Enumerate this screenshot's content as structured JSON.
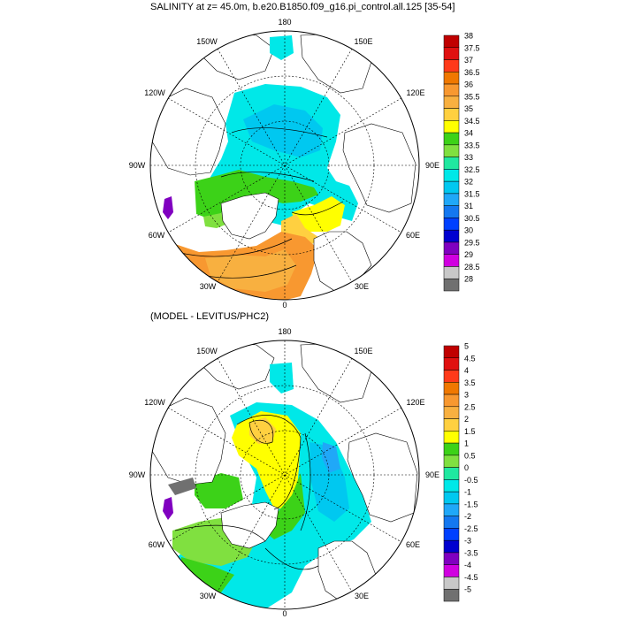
{
  "figure": {
    "map1": {
      "title": "SALINITY at z=  45.0m, b.e20.B1850.f09_g16.pi_control.all.125 [35-54]",
      "lon_labels": {
        "top": "180",
        "upper_left": "150W",
        "upper_right": "150E",
        "mid_left_upper": "120W",
        "mid_right_upper": "120E",
        "left": "90W",
        "right": "90E",
        "mid_left_lower": "60W",
        "mid_right_lower": "60E",
        "lower_left": "30W",
        "lower_right": "30E",
        "bottom": "0"
      },
      "colorbar": {
        "labels": [
          "38",
          "37.5",
          "37",
          "36.5",
          "36",
          "35.5",
          "35",
          "34.5",
          "34",
          "33.5",
          "33",
          "32.5",
          "32",
          "31.5",
          "31",
          "30.5",
          "30",
          "29.5",
          "29",
          "28.5",
          "28"
        ],
        "colors": [
          "#c00000",
          "#e01010",
          "#ff3a1a",
          "#f07800",
          "#f89830",
          "#f8b040",
          "#ffd040",
          "#ffff00",
          "#3cd218",
          "#80e040",
          "#20e8a0",
          "#00e8e8",
          "#00c8f0",
          "#20a8f8",
          "#1478f0",
          "#0040ff",
          "#0000d0",
          "#8000c0",
          "#d000e0",
          "#c8c8c8",
          "#707070"
        ]
      },
      "regions": {
        "ocean_fill_primary": "#00e8e8",
        "atlantic_fill": "#f89830",
        "land_fill": "#ffffff"
      }
    },
    "map2": {
      "title": "(MODEL - LEVITUS/PHC2)",
      "lon_labels": {
        "top": "180",
        "upper_left": "150W",
        "upper_right": "150E",
        "mid_left_upper": "120W",
        "mid_right_upper": "120E",
        "left": "90W",
        "right": "90E",
        "mid_left_lower": "60W",
        "mid_right_lower": "60E",
        "lower_left": "30W",
        "lower_right": "30E",
        "bottom": "0"
      },
      "colorbar": {
        "labels": [
          "5",
          "4.5",
          "4",
          "3.5",
          "3",
          "2.5",
          "2",
          "1.5",
          "1",
          "0.5",
          "0",
          "-0.5",
          "-1",
          "-1.5",
          "-2",
          "-2.5",
          "-3",
          "-3.5",
          "-4",
          "-4.5",
          "-5"
        ],
        "colors": [
          "#c00000",
          "#e01010",
          "#ff3a1a",
          "#f07800",
          "#f89830",
          "#f8b040",
          "#ffd040",
          "#ffff00",
          "#3cd218",
          "#80e040",
          "#20e8a0",
          "#00e8e8",
          "#00c8f0",
          "#20a8f8",
          "#1478f0",
          "#0040ff",
          "#0000d0",
          "#8000c0",
          "#d000e0",
          "#c8c8c8",
          "#707070"
        ]
      },
      "regions": {
        "ocean_fill_primary": "#00e8e8",
        "anomaly_fill": "#ffff00",
        "land_fill": "#ffffff"
      }
    }
  }
}
